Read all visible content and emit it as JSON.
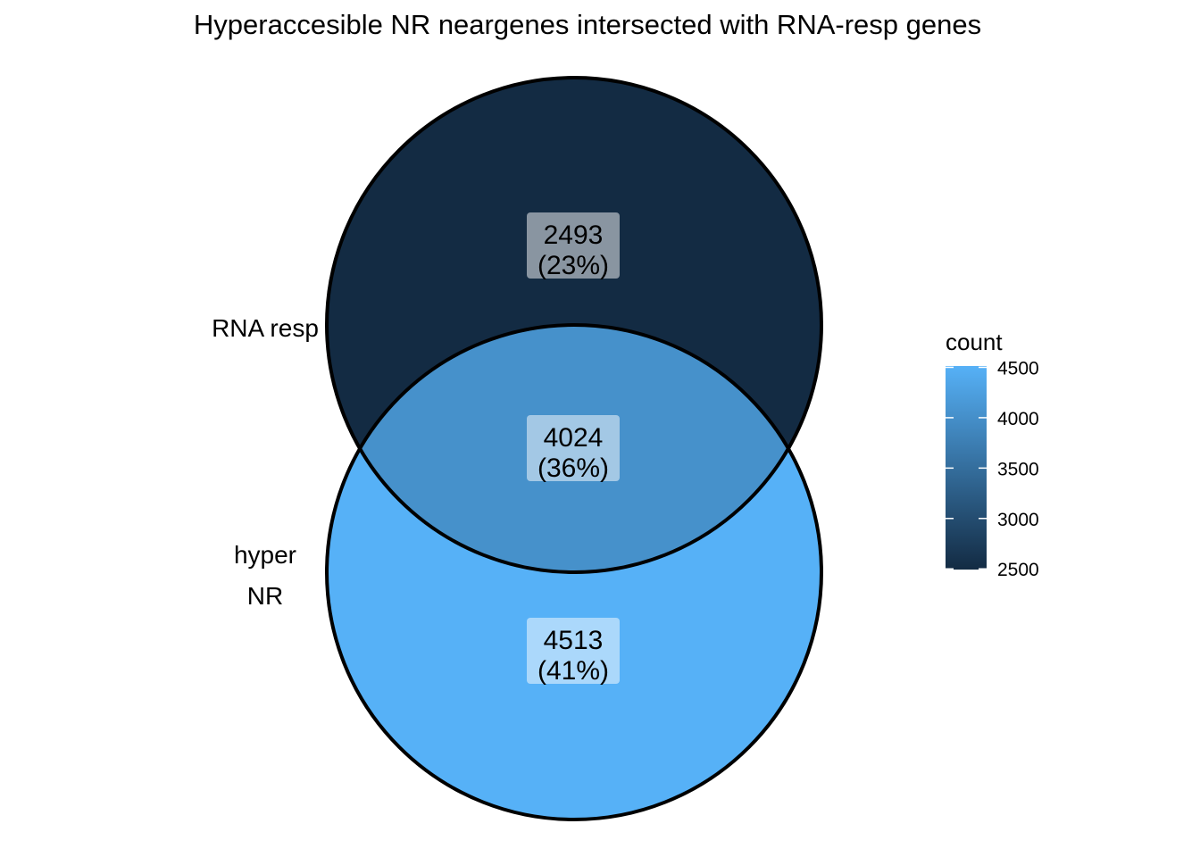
{
  "chart_data": {
    "type": "venn",
    "title": "Hyperaccesible NR neargenes intersected with RNA-resp genes",
    "sets": [
      {
        "name": "RNA resp",
        "label_lines": [
          "RNA resp"
        ]
      },
      {
        "name": "hyper NR",
        "label_lines": [
          "hyper",
          "NR"
        ]
      }
    ],
    "regions": [
      {
        "sets": [
          "RNA resp"
        ],
        "count": "2493",
        "percent": "(23%)",
        "value": 2493
      },
      {
        "sets": [
          "RNA resp",
          "hyper NR"
        ],
        "count": "4024",
        "percent": "(36%)",
        "value": 4024
      },
      {
        "sets": [
          "hyper NR"
        ],
        "count": "4513",
        "percent": "(41%)",
        "value": 4513
      }
    ],
    "legend": {
      "title": "count",
      "placement": "right",
      "range": [
        2493,
        4513
      ],
      "ticks": [
        "2500",
        "3000",
        "3500",
        "4000",
        "4500"
      ],
      "tick_values": [
        2500,
        3000,
        3500,
        4000,
        4500
      ],
      "color_low": "#132B43",
      "color_high": "#56B1F7"
    }
  }
}
